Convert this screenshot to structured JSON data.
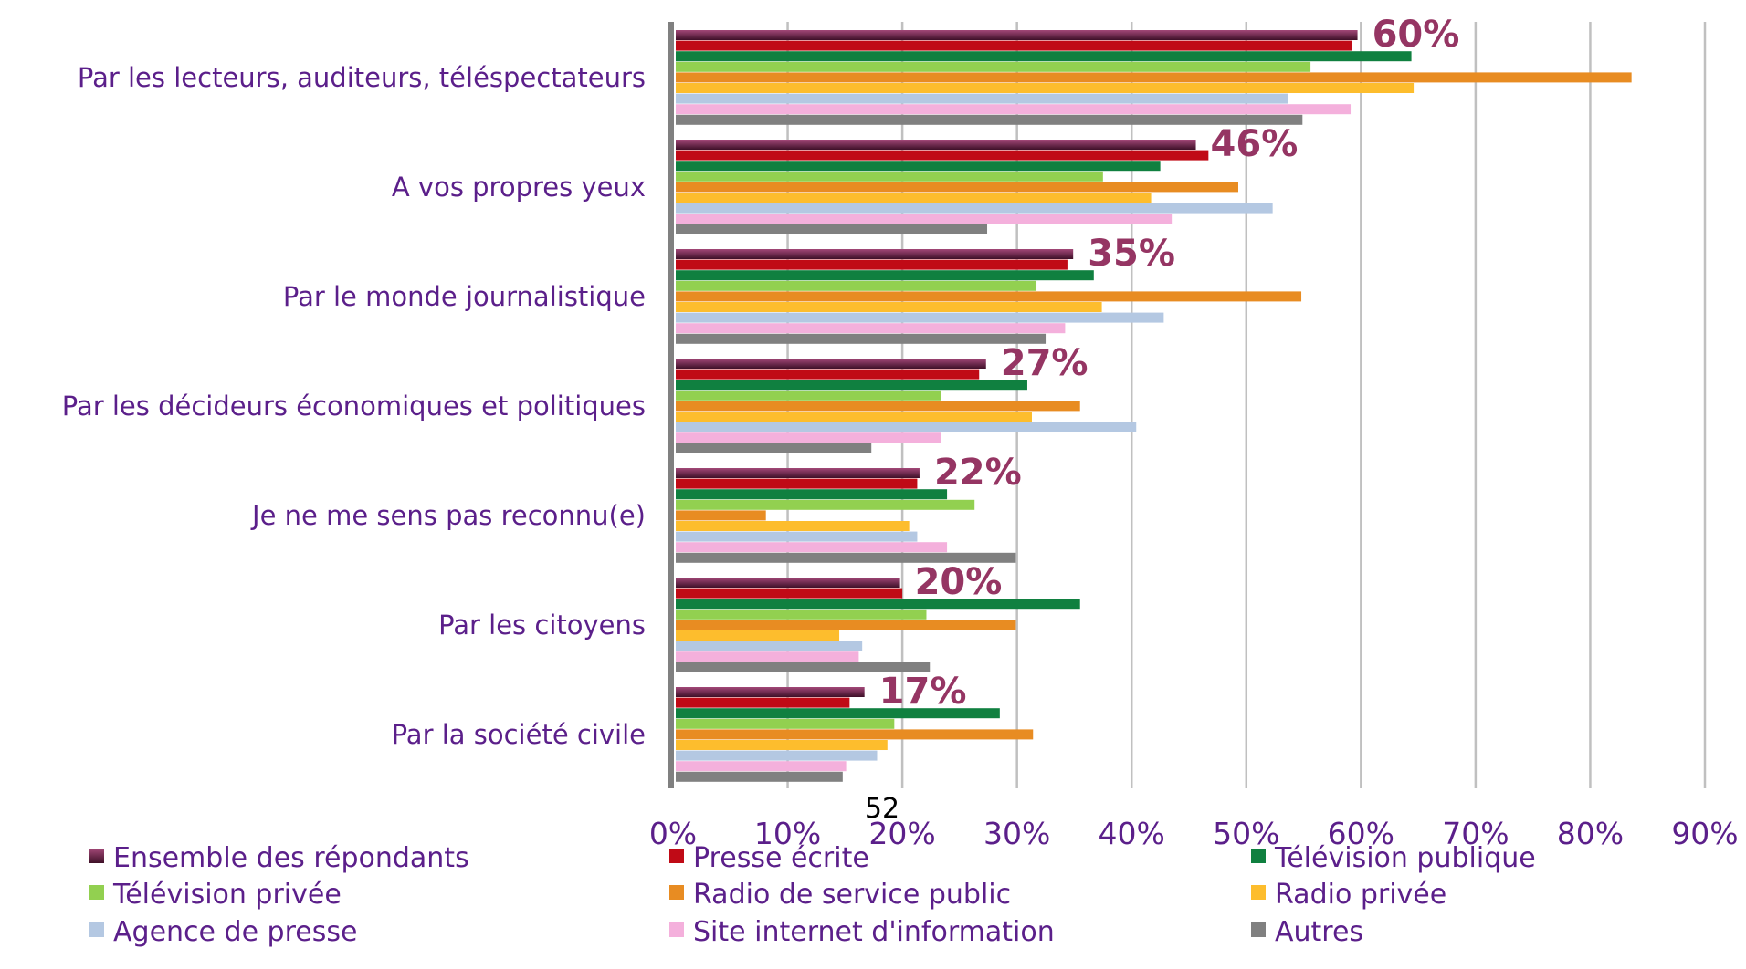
{
  "chart_data": {
    "type": "bar",
    "orientation": "horizontal",
    "categories": [
      "Par les lecteurs, auditeurs, téléspectateurs",
      "A vos propres yeux",
      "Par le monde journalistique",
      "Par les décideurs économiques et politiques",
      "Je ne me sens pas reconnu(e)",
      "Par les citoyens",
      "Par la société civile"
    ],
    "highlight_labels": [
      "60%",
      "46%",
      "35%",
      "27%",
      "22%",
      "20%",
      "17%"
    ],
    "series": [
      {
        "name": "Ensemble des répondants",
        "color": "#7a2650",
        "values": [
          59.7,
          45.6,
          34.9,
          27.3,
          21.5,
          19.8,
          16.7
        ]
      },
      {
        "name": "Presse écrite",
        "color": "#c00a16",
        "values": [
          59.2,
          46.7,
          34.4,
          26.7,
          21.3,
          20.0,
          15.4
        ]
      },
      {
        "name": "Télévision publique",
        "color": "#108040",
        "values": [
          64.4,
          42.5,
          36.7,
          30.9,
          23.9,
          35.5,
          28.5
        ]
      },
      {
        "name": "Télévision privée",
        "color": "#92d050",
        "values": [
          55.6,
          37.5,
          31.7,
          23.4,
          26.3,
          22.1,
          19.3
        ]
      },
      {
        "name": "Radio de service public",
        "color": "#e88c22",
        "values": [
          83.6,
          49.3,
          54.8,
          35.5,
          8.1,
          29.9,
          31.4
        ]
      },
      {
        "name": "Radio privée",
        "color": "#fdbd2d",
        "values": [
          64.6,
          41.7,
          37.4,
          31.3,
          20.6,
          14.5,
          18.7
        ]
      },
      {
        "name": "Agence de presse",
        "color": "#b4c8e2",
        "values": [
          53.6,
          52.3,
          42.8,
          40.4,
          21.3,
          16.5,
          17.8
        ]
      },
      {
        "name": "Site internet d'information",
        "color": "#f4b0dc",
        "values": [
          59.1,
          43.5,
          34.2,
          23.4,
          23.9,
          16.2,
          15.1
        ]
      },
      {
        "name": "Autres",
        "color": "#808080",
        "values": [
          54.9,
          27.4,
          32.5,
          17.3,
          29.9,
          22.4,
          14.8
        ]
      }
    ],
    "xlim": [
      0,
      90
    ],
    "xticks": [
      "0%",
      "10%",
      "20%",
      "30%",
      "40%",
      "50%",
      "60%",
      "70%",
      "80%",
      "90%"
    ],
    "grid": true,
    "legend_position": "bottom",
    "title": "",
    "xlabel": "",
    "ylabel": ""
  },
  "page_note": "52"
}
